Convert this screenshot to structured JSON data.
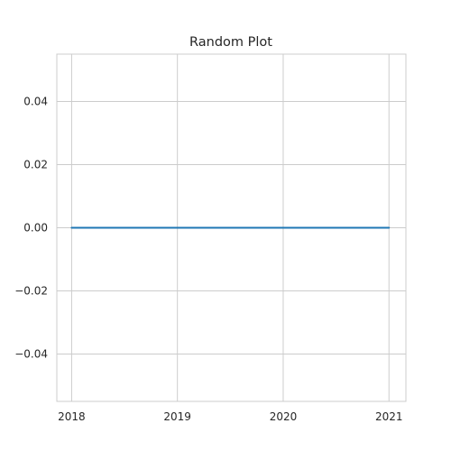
{
  "chart_data": {
    "type": "line",
    "title": "Random Plot",
    "xlabel": "",
    "ylabel": "",
    "x_ticks": [
      "2018",
      "2019",
      "2020",
      "2021"
    ],
    "y_ticks": [
      "0.04",
      "0.02",
      "0.00",
      "−0.02",
      "−0.04"
    ],
    "xlim": [
      2017.86,
      2021.16
    ],
    "ylim": [
      -0.055,
      0.055
    ],
    "grid": true,
    "series": [
      {
        "x": [
          2018,
          2021
        ],
        "y": [
          0,
          0
        ],
        "color": "#1f77b4"
      }
    ]
  },
  "colors": {
    "background": "#ffffff",
    "grid": "#cccccc",
    "axes_edge": "#cccccc",
    "text": "#262626",
    "line": "#1f77b4"
  }
}
